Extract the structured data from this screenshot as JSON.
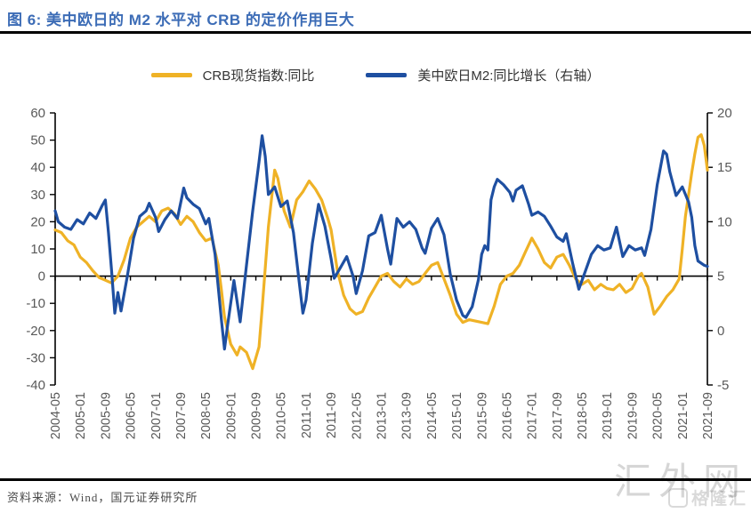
{
  "header": {
    "title": "图 6: 美中欧日的 M2 水平对 CRB 的定价作用巨大"
  },
  "legend": [
    {
      "label": "CRB现货指数:同比"
    },
    {
      "label": "美中欧日M2:同比增长（右轴）"
    }
  ],
  "footer": {
    "source": "资料来源：Wind，国元证券研究所"
  },
  "watermark": {
    "large": "汇外网",
    "small": "格隆汇"
  },
  "chart_data": {
    "type": "line",
    "title": "",
    "legend_position": "top-center",
    "grid": false,
    "axis_color": "#000000",
    "tick_label_color": "#595959",
    "months_span": 208,
    "x_tick_step_months": 8,
    "x_tick_labels": [
      "2004-05",
      "2005-01",
      "2005-09",
      "2006-05",
      "2007-01",
      "2007-09",
      "2008-05",
      "2009-01",
      "2009-09",
      "2010-05",
      "2011-01",
      "2011-09",
      "2012-05",
      "2013-01",
      "2013-09",
      "2014-05",
      "2015-01",
      "2015-09",
      "2016-05",
      "2017-01",
      "2017-09",
      "2018-05",
      "2019-01",
      "2019-09",
      "2020-05",
      "2021-01",
      "2021-09"
    ],
    "left_axis": {
      "min": -40,
      "max": 60,
      "ticks": [
        60,
        50,
        40,
        30,
        20,
        10,
        0,
        -10,
        -20,
        -30,
        -40
      ]
    },
    "right_axis": {
      "min": -5,
      "max": 20,
      "ticks": [
        20,
        15,
        10,
        5,
        0,
        -5
      ]
    },
    "series": [
      {
        "name": "CRB现货指数:同比",
        "axis": "left",
        "color": "#efb226",
        "points": [
          [
            0,
            17
          ],
          [
            2,
            16
          ],
          [
            4,
            13
          ],
          [
            6,
            11.5
          ],
          [
            8,
            7
          ],
          [
            10,
            5
          ],
          [
            12,
            2
          ],
          [
            14,
            -0.5
          ],
          [
            16,
            -1.5
          ],
          [
            18,
            -2.5
          ],
          [
            20,
            0
          ],
          [
            22,
            6
          ],
          [
            24,
            14
          ],
          [
            26,
            18
          ],
          [
            28,
            20
          ],
          [
            30,
            22
          ],
          [
            32,
            20
          ],
          [
            34,
            24
          ],
          [
            36,
            25
          ],
          [
            38,
            23
          ],
          [
            40,
            19
          ],
          [
            42,
            22
          ],
          [
            44,
            20
          ],
          [
            46,
            16
          ],
          [
            48,
            13
          ],
          [
            50,
            14
          ],
          [
            52,
            4
          ],
          [
            53,
            -5
          ],
          [
            54,
            -15
          ],
          [
            56,
            -25
          ],
          [
            58,
            -29
          ],
          [
            59,
            -26
          ],
          [
            61,
            -28
          ],
          [
            63,
            -34
          ],
          [
            65,
            -26
          ],
          [
            66,
            -12
          ],
          [
            68,
            18
          ],
          [
            70,
            39
          ],
          [
            71,
            36
          ],
          [
            73,
            24
          ],
          [
            75,
            18
          ],
          [
            77,
            28
          ],
          [
            79,
            31
          ],
          [
            81,
            35
          ],
          [
            83,
            32
          ],
          [
            85,
            28
          ],
          [
            87,
            21
          ],
          [
            88,
            17
          ],
          [
            90,
            2
          ],
          [
            92,
            -7
          ],
          [
            94,
            -12
          ],
          [
            96,
            -14
          ],
          [
            98,
            -13
          ],
          [
            100,
            -8
          ],
          [
            102,
            -4
          ],
          [
            104,
            0
          ],
          [
            106,
            1
          ],
          [
            108,
            -2
          ],
          [
            110,
            -4
          ],
          [
            112,
            -1
          ],
          [
            114,
            -3
          ],
          [
            116,
            -2
          ],
          [
            118,
            1
          ],
          [
            120,
            4
          ],
          [
            122,
            5
          ],
          [
            124,
            -1
          ],
          [
            126,
            -7
          ],
          [
            128,
            -14
          ],
          [
            130,
            -17
          ],
          [
            132,
            -16
          ],
          [
            134,
            -16.5
          ],
          [
            136,
            -17
          ],
          [
            138,
            -17.5
          ],
          [
            140,
            -11
          ],
          [
            142,
            -3
          ],
          [
            144,
            0
          ],
          [
            146,
            1
          ],
          [
            148,
            4
          ],
          [
            150,
            9
          ],
          [
            152,
            14
          ],
          [
            154,
            10
          ],
          [
            156,
            5
          ],
          [
            158,
            3
          ],
          [
            160,
            7
          ],
          [
            162,
            8
          ],
          [
            164,
            4
          ],
          [
            166,
            -1
          ],
          [
            168,
            -3
          ],
          [
            170,
            -1.5
          ],
          [
            172,
            -5
          ],
          [
            174,
            -3
          ],
          [
            176,
            -4.5
          ],
          [
            178,
            -5
          ],
          [
            180,
            -3
          ],
          [
            182,
            -6
          ],
          [
            184,
            -4.5
          ],
          [
            186,
            0
          ],
          [
            187,
            1
          ],
          [
            189,
            -4
          ],
          [
            191,
            -14
          ],
          [
            193,
            -11
          ],
          [
            195,
            -7.5
          ],
          [
            197,
            -5
          ],
          [
            199,
            -1
          ],
          [
            200,
            10
          ],
          [
            201,
            22
          ],
          [
            202,
            30
          ],
          [
            203,
            38
          ],
          [
            204,
            45
          ],
          [
            205,
            51
          ],
          [
            206,
            52
          ],
          [
            207,
            48
          ],
          [
            208,
            39
          ]
        ]
      },
      {
        "name": "美中欧日M2:同比增长（右轴）",
        "axis": "right",
        "color": "#1e4fa1",
        "points": [
          [
            0,
            11
          ],
          [
            1,
            10
          ],
          [
            3,
            9.5
          ],
          [
            5,
            9.3
          ],
          [
            7,
            10.2
          ],
          [
            9,
            9.8
          ],
          [
            11,
            10.8
          ],
          [
            13,
            10.3
          ],
          [
            15,
            11.5
          ],
          [
            16,
            12
          ],
          [
            17,
            9
          ],
          [
            18,
            5.5
          ],
          [
            19,
            1.6
          ],
          [
            20,
            3.5
          ],
          [
            21,
            1.8
          ],
          [
            23,
            5
          ],
          [
            25,
            8.5
          ],
          [
            27,
            10.5
          ],
          [
            29,
            11
          ],
          [
            30,
            11.7
          ],
          [
            32,
            10.4
          ],
          [
            33,
            9.1
          ],
          [
            35,
            10.2
          ],
          [
            37,
            11
          ],
          [
            39,
            10.3
          ],
          [
            41,
            13.1
          ],
          [
            42,
            12.2
          ],
          [
            44,
            11.6
          ],
          [
            46,
            11.2
          ],
          [
            48,
            9.8
          ],
          [
            49,
            10.3
          ],
          [
            51,
            7
          ],
          [
            53,
            1
          ],
          [
            54,
            -1.7
          ],
          [
            55,
            0.5
          ],
          [
            57,
            4.6
          ],
          [
            59,
            0.8
          ],
          [
            61,
            6
          ],
          [
            63,
            11
          ],
          [
            65,
            15.5
          ],
          [
            66,
            17.9
          ],
          [
            67,
            16
          ],
          [
            68,
            12.5
          ],
          [
            70,
            13.2
          ],
          [
            72,
            11.4
          ],
          [
            74,
            11.9
          ],
          [
            76,
            9
          ],
          [
            78,
            4
          ],
          [
            79,
            1.6
          ],
          [
            80,
            2.8
          ],
          [
            82,
            8
          ],
          [
            84,
            11.6
          ],
          [
            86,
            9.6
          ],
          [
            88,
            6.6
          ],
          [
            89,
            4.8
          ],
          [
            91,
            5.8
          ],
          [
            93,
            6.8
          ],
          [
            95,
            5
          ],
          [
            96,
            3.4
          ],
          [
            98,
            5.5
          ],
          [
            100,
            8.7
          ],
          [
            102,
            9
          ],
          [
            104,
            10.6
          ],
          [
            106,
            7.5
          ],
          [
            107,
            6.1
          ],
          [
            109,
            10.3
          ],
          [
            111,
            9.5
          ],
          [
            113,
            10
          ],
          [
            115,
            9.3
          ],
          [
            117,
            7.6
          ],
          [
            118,
            7.1
          ],
          [
            120,
            9.4
          ],
          [
            122,
            10.3
          ],
          [
            124,
            8.8
          ],
          [
            126,
            5.2
          ],
          [
            128,
            2.8
          ],
          [
            130,
            1.4
          ],
          [
            131,
            1.2
          ],
          [
            133,
            2.2
          ],
          [
            135,
            4.7
          ],
          [
            136,
            7
          ],
          [
            137,
            7.8
          ],
          [
            138,
            7.4
          ],
          [
            139,
            12
          ],
          [
            140,
            13.2
          ],
          [
            141,
            13.9
          ],
          [
            143,
            13.4
          ],
          [
            145,
            12.7
          ],
          [
            146,
            11.9
          ],
          [
            147,
            12.9
          ],
          [
            149,
            13.3
          ],
          [
            151,
            11.6
          ],
          [
            152,
            10.6
          ],
          [
            154,
            10.9
          ],
          [
            156,
            10.5
          ],
          [
            158,
            9.6
          ],
          [
            160,
            8.6
          ],
          [
            162,
            8.2
          ],
          [
            163,
            8.9
          ],
          [
            165,
            6.2
          ],
          [
            167,
            3.8
          ],
          [
            169,
            5.4
          ],
          [
            171,
            7
          ],
          [
            173,
            7.8
          ],
          [
            175,
            7.4
          ],
          [
            177,
            7.6
          ],
          [
            179,
            9.5
          ],
          [
            181,
            6.8
          ],
          [
            183,
            7.8
          ],
          [
            185,
            7.4
          ],
          [
            187,
            7.6
          ],
          [
            188,
            6.9
          ],
          [
            190,
            9.3
          ],
          [
            192,
            13.4
          ],
          [
            194,
            16.5
          ],
          [
            195,
            16.2
          ],
          [
            196,
            14.6
          ],
          [
            198,
            12.4
          ],
          [
            200,
            13.2
          ],
          [
            202,
            11.8
          ],
          [
            203,
            10.4
          ],
          [
            204,
            7.8
          ],
          [
            205,
            6.4
          ],
          [
            207,
            6
          ],
          [
            208,
            5.9
          ]
        ]
      }
    ]
  }
}
